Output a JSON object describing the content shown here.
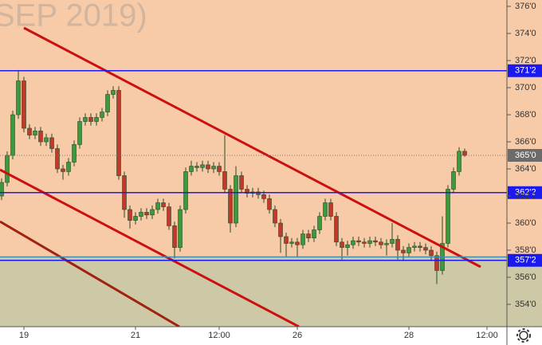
{
  "chart_data": {
    "type": "candlestick",
    "title": "SEP 2019)",
    "categories": [
      null,
      null,
      null,
      null,
      "19",
      null,
      null,
      null,
      null,
      null,
      null,
      null,
      null,
      null,
      null,
      null,
      null,
      null,
      null,
      null,
      null,
      null,
      null,
      null,
      "21",
      null,
      null,
      null,
      null,
      null,
      null,
      null,
      null,
      null,
      null,
      null,
      null,
      null,
      null,
      "12:00",
      null,
      null,
      null,
      null,
      null,
      null,
      null,
      null,
      null,
      null,
      null,
      null,
      null,
      "26",
      null,
      null,
      null,
      null,
      null,
      null,
      null,
      null,
      null,
      null,
      null,
      null,
      null,
      null,
      null,
      null,
      null,
      null,
      null,
      "28",
      null,
      null,
      null,
      null,
      null,
      null,
      null,
      null,
      null,
      null,
      null,
      null,
      null,
      "12:00"
    ],
    "open": [
      362,
      363,
      365,
      368,
      370.5,
      367,
      366.5,
      366.8,
      366,
      366.3,
      365.5,
      364,
      363.8,
      364.5,
      365.8,
      367.5,
      367.8,
      367.5,
      367.8,
      368.2,
      369.5,
      369.8,
      363.5,
      361,
      360.2,
      360.5,
      360.8,
      360.6,
      361,
      361.5,
      361.2,
      359.8,
      358.2,
      361,
      363.8,
      364.2,
      364.1,
      364.3,
      364,
      364.2,
      363.8,
      362.5,
      360,
      363.5,
      362.5,
      362.2,
      362.3,
      362.1,
      361.8,
      361,
      360,
      359,
      358.5,
      358.6,
      358.4,
      359.2,
      358.9,
      359.5,
      360.5,
      361.5,
      360.5,
      358.6,
      358.2,
      358.4,
      358.7,
      358.6,
      358.5,
      358.7,
      358.6,
      358.4,
      358.5,
      358.8,
      358,
      357.8,
      358.2,
      358.3,
      358.2,
      358,
      357.6,
      356.5,
      358.5,
      362.5,
      363.8,
      365.3,
      null,
      null,
      null,
      null
    ],
    "high": [
      363.3,
      365.3,
      368.3,
      371.3,
      370.8,
      367.3,
      367.1,
      367.1,
      366.6,
      366.6,
      365.8,
      364.3,
      364.8,
      366.1,
      367.8,
      368.1,
      368.1,
      368.1,
      368.5,
      369.8,
      370.1,
      370.1,
      363.8,
      361.3,
      360.8,
      361.1,
      361.1,
      361.3,
      361.8,
      361.8,
      361.5,
      360.1,
      361.3,
      364.1,
      364.6,
      364.5,
      364.6,
      364.6,
      364.5,
      364.5,
      366.5,
      362.8,
      364.2,
      363.8,
      362.8,
      362.6,
      362.6,
      362.4,
      362.1,
      361.3,
      360.3,
      359.3,
      358.9,
      358.9,
      359.5,
      359.5,
      359.8,
      360.8,
      361.8,
      361.8,
      360.8,
      358.9,
      358.7,
      359,
      359,
      358.9,
      359,
      359,
      358.9,
      358.8,
      360,
      359.1,
      358.3,
      358.5,
      358.6,
      358.6,
      358.5,
      358.3,
      357.9,
      360.5,
      362.8,
      364.1,
      365.6,
      365.5,
      null,
      null,
      null,
      null
    ],
    "low": [
      361.7,
      362.7,
      364.7,
      367.7,
      366.7,
      366.2,
      366.2,
      365.7,
      365.7,
      365.2,
      363.7,
      363.2,
      363.5,
      364.2,
      365.5,
      367.2,
      367.2,
      367.2,
      367.5,
      367.9,
      369.2,
      363.2,
      360.4,
      359.6,
      359.9,
      360.2,
      360.3,
      360.3,
      360.7,
      360.9,
      359.5,
      357.4,
      357.9,
      360.7,
      363.5,
      363.8,
      363.8,
      363.7,
      363.7,
      363.5,
      362.2,
      359.3,
      359.7,
      362.2,
      361.9,
      361.9,
      361.8,
      361.5,
      360.7,
      359.7,
      357.8,
      357.5,
      358.2,
      357.5,
      358.1,
      358.6,
      358.6,
      359.2,
      360.2,
      360.2,
      358.3,
      357.3,
      357.6,
      358.1,
      358.3,
      358.2,
      358.2,
      358.3,
      358.1,
      357.6,
      358.2,
      357.3,
      357.2,
      357.5,
      357.9,
      357.9,
      357.7,
      357.2,
      355.5,
      356.2,
      358.2,
      362.2,
      363.5,
      364.9,
      null,
      null,
      null,
      null
    ],
    "close": [
      363,
      365,
      368,
      370.5,
      367,
      366.5,
      366.8,
      366,
      366.3,
      365.5,
      364,
      363.8,
      364.5,
      365.8,
      367.5,
      367.8,
      367.5,
      367.8,
      368.2,
      369.5,
      369.8,
      363.5,
      361,
      360.2,
      360.5,
      360.8,
      360.6,
      361,
      361.5,
      361.2,
      359.8,
      358.2,
      361,
      363.8,
      364.2,
      364.1,
      364.3,
      364,
      364.2,
      363.8,
      362.5,
      360,
      363.5,
      362.5,
      362.2,
      362.3,
      362.1,
      361.8,
      361,
      360,
      359,
      358.5,
      358.6,
      358.4,
      359.2,
      358.9,
      359.5,
      360.5,
      361.5,
      360.5,
      358.6,
      358.2,
      358.4,
      358.7,
      358.6,
      358.5,
      358.7,
      358.6,
      358.4,
      358.5,
      358.8,
      358,
      357.8,
      358.2,
      358.3,
      358.2,
      358,
      357.6,
      356.5,
      358.5,
      362.5,
      363.8,
      365.3,
      365,
      null,
      null,
      null,
      null
    ],
    "up_color": "#3c9a3c",
    "down_color": "#c0392b",
    "ylim": [
      354,
      376
    ],
    "yticks": [
      {
        "value": 354,
        "label": "354'0"
      },
      {
        "value": 356,
        "label": "356'0"
      },
      {
        "value": 358,
        "label": "358'0"
      },
      {
        "value": 360,
        "label": "360'0"
      },
      {
        "value": 362,
        "label": "362'0"
      },
      {
        "value": 364,
        "label": "364'0"
      },
      {
        "value": 366,
        "label": "366'0"
      },
      {
        "value": 368,
        "label": "368'0"
      },
      {
        "value": 370,
        "label": "370'0"
      },
      {
        "value": 372,
        "label": "372'0"
      },
      {
        "value": 374,
        "label": "374'0"
      },
      {
        "value": 376,
        "label": "376'0"
      }
    ],
    "levels": [
      {
        "value": 371.25,
        "label": "371'2",
        "color": "#1a1aee"
      },
      {
        "value": 362.25,
        "label": "362'2",
        "color": "#1a1aee"
      },
      {
        "value": 357.25,
        "label": "357'2",
        "color": "#1a1aee"
      },
      {
        "value": 357.5,
        "color": "#3c8fb0",
        "fill_below": "#cdc9a6"
      }
    ],
    "last_price": {
      "value": 365,
      "label": "365'0",
      "color": "#6b6b6b"
    }
  }
}
